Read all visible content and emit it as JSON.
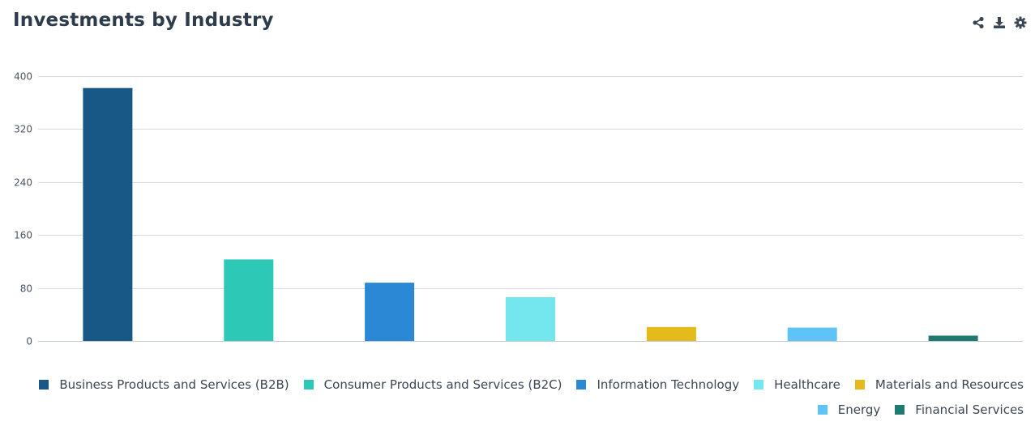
{
  "header": {
    "title": "Investments by Industry"
  },
  "toolbar": {
    "icons": [
      "share-icon",
      "download-icon",
      "gear-icon"
    ]
  },
  "chart_data": {
    "type": "bar",
    "title": "Investments by Industry",
    "xlabel": "",
    "ylabel": "",
    "ylim": [
      0,
      400
    ],
    "yticks": [
      0,
      80,
      160,
      240,
      320,
      400
    ],
    "grid": true,
    "legend_position": "bottom-right",
    "categories": [
      "Business Products and Services (B2B)",
      "Consumer Products and Services (B2C)",
      "Information Technology",
      "Healthcare",
      "Materials and Resources",
      "Energy",
      "Financial Services"
    ],
    "values": [
      382,
      123,
      88,
      66,
      21,
      20,
      8
    ],
    "colors": [
      "#185886",
      "#2ec9b6",
      "#2a88d4",
      "#74e6ee",
      "#e4bb1a",
      "#5ec4f7",
      "#1f7b72"
    ]
  }
}
